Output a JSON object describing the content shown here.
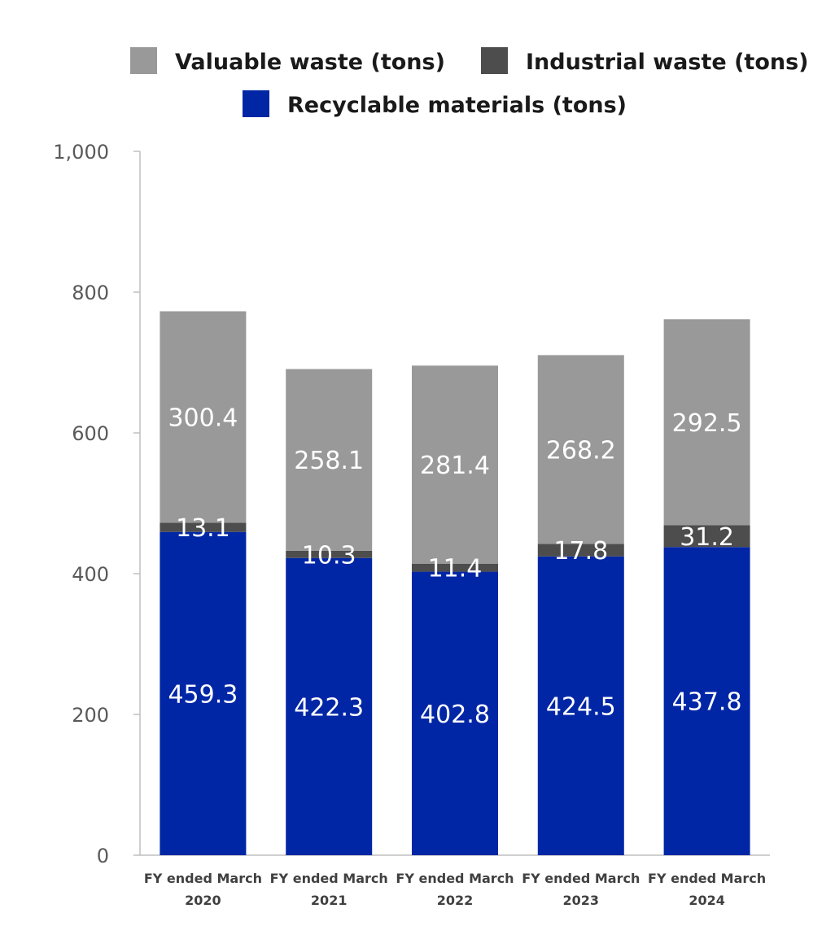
{
  "chart_data": {
    "type": "bar",
    "stacked": true,
    "categories": [
      [
        "FY ended March",
        "2020"
      ],
      [
        "FY ended March",
        "2021"
      ],
      [
        "FY ended March",
        "2022"
      ],
      [
        "FY ended March",
        "2023"
      ],
      [
        "FY ended March",
        "2024"
      ]
    ],
    "series": [
      {
        "name": "Recyclable materials (tons)",
        "color": "#0026a6",
        "values": [
          459.3,
          422.3,
          402.8,
          424.5,
          437.8
        ],
        "labels": [
          "459.3",
          "422.3",
          "402.8",
          "424.5",
          "437.8"
        ]
      },
      {
        "name": "Industrial waste (tons)",
        "color": "#4d4d4d",
        "values": [
          13.1,
          10.3,
          11.4,
          17.8,
          31.2
        ],
        "labels": [
          "13.1",
          "10.3",
          "11.4",
          "17.8",
          "31.2"
        ]
      },
      {
        "name": "Valuable waste (tons)",
        "color": "#999999",
        "values": [
          300.4,
          258.1,
          281.4,
          268.2,
          292.5
        ],
        "labels": [
          "300.4",
          "258.1",
          "281.4",
          "268.2",
          "292.5"
        ]
      }
    ],
    "legend_order": [
      2,
      1,
      0
    ],
    "legend_position": "top",
    "ylim": [
      0,
      1000
    ],
    "yticks": [
      0,
      200,
      400,
      600,
      800,
      1000
    ],
    "ytick_labels": [
      "0",
      "200",
      "400",
      "600",
      "800",
      "1,000"
    ],
    "grid": false,
    "title": "",
    "xlabel": "",
    "ylabel": ""
  }
}
